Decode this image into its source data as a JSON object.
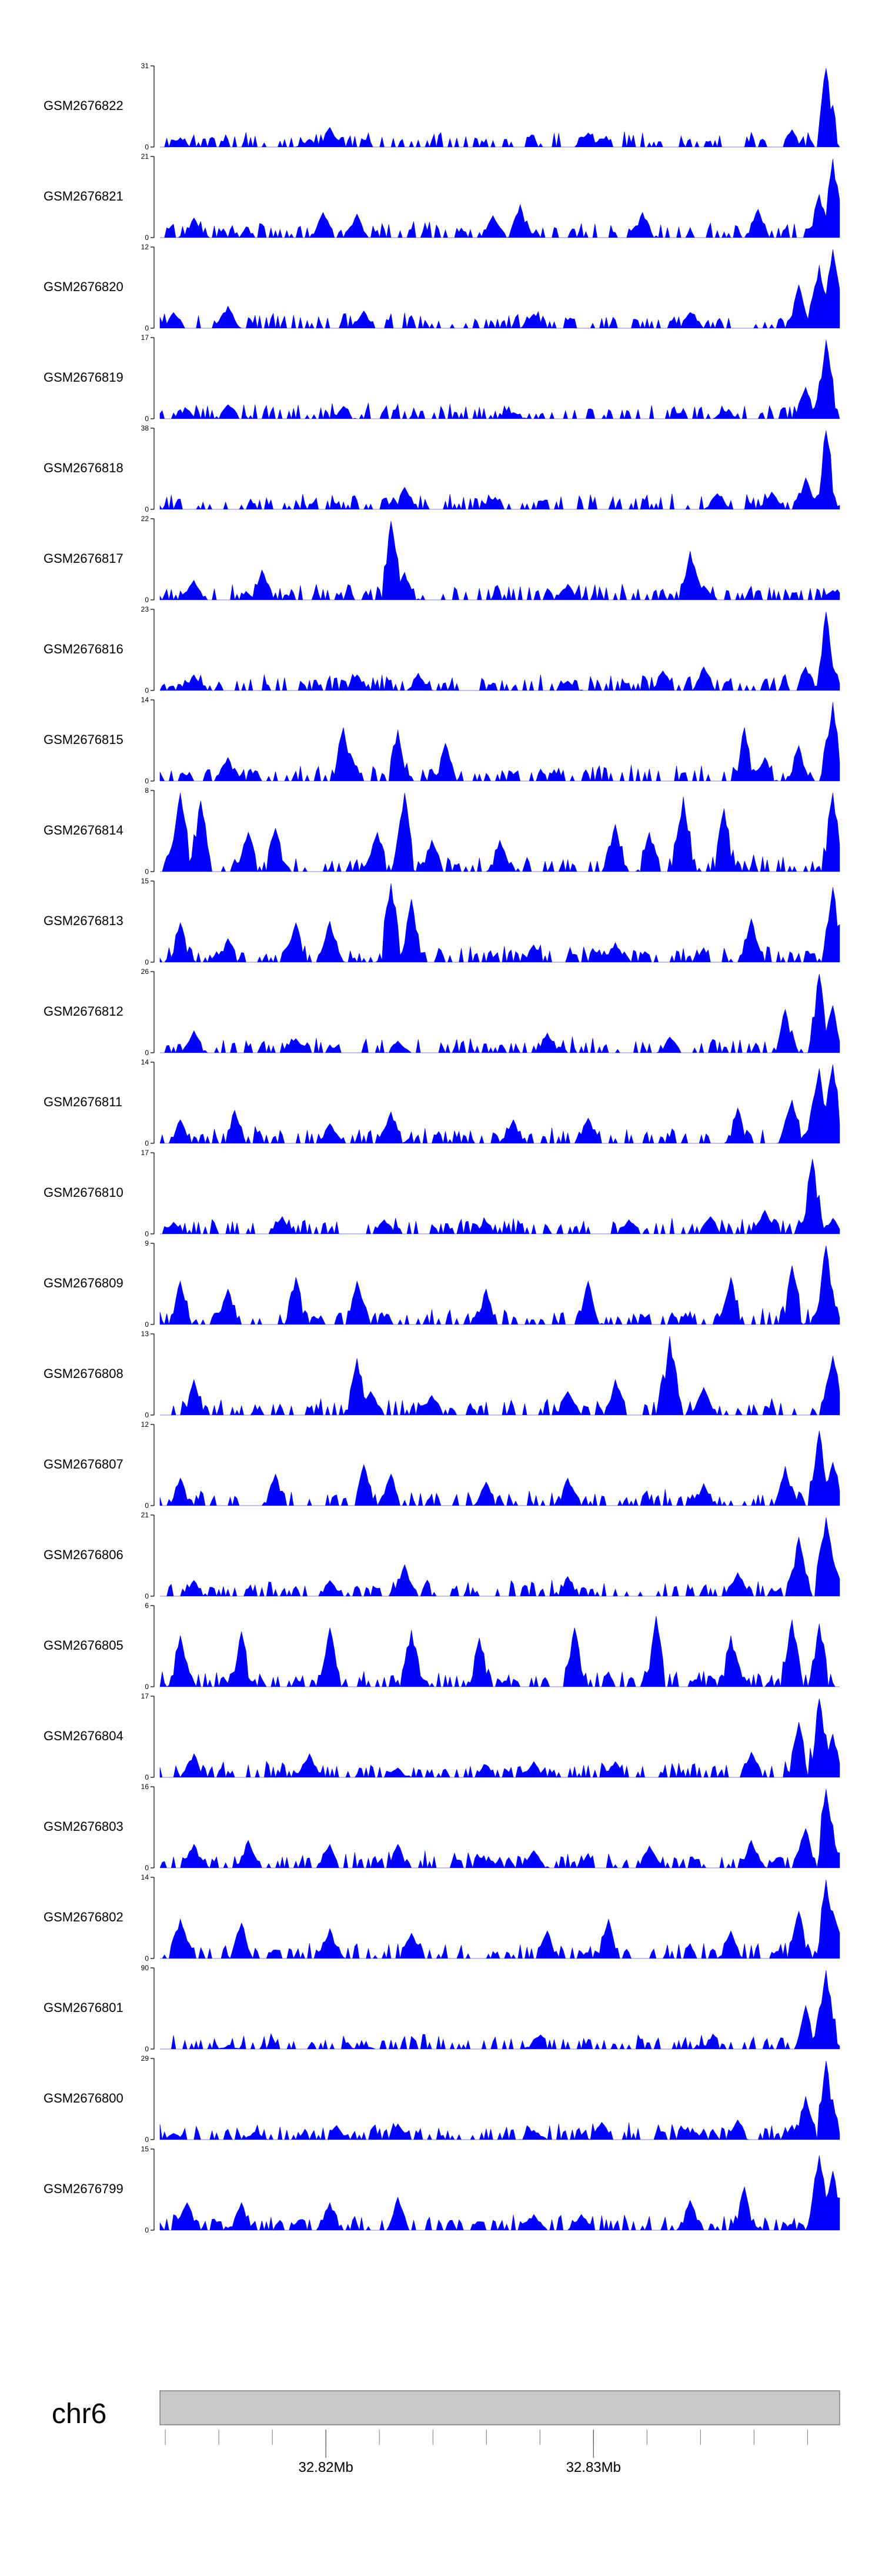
{
  "chart_data": {
    "type": "area",
    "title": "",
    "chromosome": "chr6",
    "x_axis": {
      "range_mb": [
        32.8138,
        32.8392
      ],
      "labeled_ticks": [
        {
          "value": 32.82,
          "label": "32.82Mb"
        },
        {
          "value": 32.83,
          "label": "32.83Mb"
        }
      ],
      "minor_tick_step_mb": 0.002
    },
    "fill_color": "#0000ff",
    "ideogram_color": "#c8c8c8",
    "tracks": [
      {
        "name": "GSM2676822",
        "ymax": 31,
        "ymin": 0,
        "peaks": [
          [
            0.03,
            0.12
          ],
          [
            0.22,
            0.1
          ],
          [
            0.25,
            0.25
          ],
          [
            0.63,
            0.18
          ],
          [
            0.93,
            0.22
          ],
          [
            0.98,
            1.0
          ]
        ]
      },
      {
        "name": "GSM2676821",
        "ymax": 21,
        "ymin": 0,
        "peaks": [
          [
            0.05,
            0.25
          ],
          [
            0.24,
            0.32
          ],
          [
            0.29,
            0.3
          ],
          [
            0.49,
            0.28
          ],
          [
            0.53,
            0.42
          ],
          [
            0.71,
            0.32
          ],
          [
            0.88,
            0.36
          ],
          [
            0.97,
            0.55
          ],
          [
            0.99,
            1.0
          ]
        ]
      },
      {
        "name": "GSM2676820",
        "ymax": 12,
        "ymin": 0,
        "peaks": [
          [
            0.02,
            0.2
          ],
          [
            0.1,
            0.28
          ],
          [
            0.3,
            0.22
          ],
          [
            0.55,
            0.18
          ],
          [
            0.78,
            0.2
          ],
          [
            0.94,
            0.55
          ],
          [
            0.97,
            0.8
          ],
          [
            0.99,
            1.0
          ]
        ]
      },
      {
        "name": "GSM2676819",
        "ymax": 17,
        "ymin": 0,
        "peaks": [
          [
            0.04,
            0.12
          ],
          [
            0.1,
            0.18
          ],
          [
            0.27,
            0.16
          ],
          [
            0.52,
            0.08
          ],
          [
            0.83,
            0.1
          ],
          [
            0.95,
            0.4
          ],
          [
            0.98,
            1.0
          ]
        ]
      },
      {
        "name": "GSM2676818",
        "ymax": 38,
        "ymin": 0,
        "peaks": [
          [
            0.36,
            0.28
          ],
          [
            0.49,
            0.12
          ],
          [
            0.82,
            0.2
          ],
          [
            0.9,
            0.22
          ],
          [
            0.95,
            0.4
          ],
          [
            0.98,
            1.0
          ]
        ]
      },
      {
        "name": "GSM2676817",
        "ymax": 22,
        "ymin": 0,
        "peaks": [
          [
            0.05,
            0.25
          ],
          [
            0.15,
            0.38
          ],
          [
            0.34,
            1.0
          ],
          [
            0.36,
            0.35
          ],
          [
            0.6,
            0.2
          ],
          [
            0.78,
            0.62
          ],
          [
            0.8,
            0.18
          ],
          [
            0.99,
            0.12
          ]
        ]
      },
      {
        "name": "GSM2676816",
        "ymax": 23,
        "ymin": 0,
        "peaks": [
          [
            0.05,
            0.2
          ],
          [
            0.29,
            0.2
          ],
          [
            0.38,
            0.22
          ],
          [
            0.6,
            0.12
          ],
          [
            0.74,
            0.25
          ],
          [
            0.8,
            0.3
          ],
          [
            0.95,
            0.3
          ],
          [
            0.98,
            1.0
          ],
          [
            0.99,
            0.3
          ]
        ]
      },
      {
        "name": "GSM2676815",
        "ymax": 14,
        "ymin": 0,
        "peaks": [
          [
            0.1,
            0.3
          ],
          [
            0.27,
            0.68
          ],
          [
            0.28,
            0.35
          ],
          [
            0.35,
            0.65
          ],
          [
            0.42,
            0.48
          ],
          [
            0.86,
            0.68
          ],
          [
            0.89,
            0.3
          ],
          [
            0.94,
            0.45
          ],
          [
            0.99,
            1.0
          ]
        ]
      },
      {
        "name": "GSM2676814",
        "ymax": 8,
        "ymin": 0,
        "peaks": [
          [
            0.03,
            1.0
          ],
          [
            0.06,
            0.9
          ],
          [
            0.13,
            0.5
          ],
          [
            0.17,
            0.55
          ],
          [
            0.32,
            0.5
          ],
          [
            0.36,
            1.0
          ],
          [
            0.4,
            0.4
          ],
          [
            0.5,
            0.4
          ],
          [
            0.67,
            0.6
          ],
          [
            0.72,
            0.5
          ],
          [
            0.77,
            0.95
          ],
          [
            0.83,
            0.8
          ],
          [
            0.99,
            1.0
          ]
        ]
      },
      {
        "name": "GSM2676813",
        "ymax": 15,
        "ymin": 0,
        "peaks": [
          [
            0.03,
            0.5
          ],
          [
            0.1,
            0.3
          ],
          [
            0.2,
            0.5
          ],
          [
            0.25,
            0.52
          ],
          [
            0.34,
            1.0
          ],
          [
            0.37,
            0.8
          ],
          [
            0.55,
            0.22
          ],
          [
            0.67,
            0.25
          ],
          [
            0.87,
            0.55
          ],
          [
            0.99,
            0.95
          ]
        ]
      },
      {
        "name": "GSM2676812",
        "ymax": 26,
        "ymin": 0,
        "peaks": [
          [
            0.05,
            0.28
          ],
          [
            0.2,
            0.18
          ],
          [
            0.35,
            0.15
          ],
          [
            0.57,
            0.25
          ],
          [
            0.75,
            0.2
          ],
          [
            0.92,
            0.55
          ],
          [
            0.97,
            1.0
          ],
          [
            0.99,
            0.6
          ]
        ]
      },
      {
        "name": "GSM2676811",
        "ymax": 14,
        "ymin": 0,
        "peaks": [
          [
            0.03,
            0.3
          ],
          [
            0.11,
            0.42
          ],
          [
            0.25,
            0.25
          ],
          [
            0.34,
            0.4
          ],
          [
            0.52,
            0.3
          ],
          [
            0.63,
            0.32
          ],
          [
            0.85,
            0.45
          ],
          [
            0.93,
            0.55
          ],
          [
            0.97,
            0.95
          ],
          [
            0.99,
            1.0
          ]
        ]
      },
      {
        "name": "GSM2676810",
        "ymax": 17,
        "ymin": 0,
        "peaks": [
          [
            0.02,
            0.15
          ],
          [
            0.18,
            0.22
          ],
          [
            0.33,
            0.18
          ],
          [
            0.48,
            0.15
          ],
          [
            0.69,
            0.18
          ],
          [
            0.81,
            0.22
          ],
          [
            0.89,
            0.3
          ],
          [
            0.96,
            0.95
          ],
          [
            0.99,
            0.2
          ]
        ]
      },
      {
        "name": "GSM2676809",
        "ymax": 9,
        "ymin": 0,
        "peaks": [
          [
            0.03,
            0.55
          ],
          [
            0.1,
            0.45
          ],
          [
            0.2,
            0.6
          ],
          [
            0.29,
            0.55
          ],
          [
            0.48,
            0.45
          ],
          [
            0.63,
            0.55
          ],
          [
            0.84,
            0.6
          ],
          [
            0.93,
            0.75
          ],
          [
            0.98,
            1.0
          ]
        ]
      },
      {
        "name": "GSM2676808",
        "ymax": 13,
        "ymin": 0,
        "peaks": [
          [
            0.05,
            0.45
          ],
          [
            0.29,
            0.72
          ],
          [
            0.31,
            0.3
          ],
          [
            0.4,
            0.25
          ],
          [
            0.6,
            0.3
          ],
          [
            0.67,
            0.45
          ],
          [
            0.75,
            1.0
          ],
          [
            0.8,
            0.35
          ],
          [
            0.99,
            0.75
          ]
        ]
      },
      {
        "name": "GSM2676807",
        "ymax": 12,
        "ymin": 0,
        "peaks": [
          [
            0.03,
            0.35
          ],
          [
            0.17,
            0.4
          ],
          [
            0.3,
            0.52
          ],
          [
            0.34,
            0.4
          ],
          [
            0.48,
            0.3
          ],
          [
            0.6,
            0.35
          ],
          [
            0.8,
            0.28
          ],
          [
            0.92,
            0.5
          ],
          [
            0.97,
            0.95
          ],
          [
            0.99,
            0.55
          ]
        ]
      },
      {
        "name": "GSM2676806",
        "ymax": 21,
        "ymin": 0,
        "peaks": [
          [
            0.05,
            0.2
          ],
          [
            0.25,
            0.2
          ],
          [
            0.36,
            0.4
          ],
          [
            0.6,
            0.25
          ],
          [
            0.85,
            0.3
          ],
          [
            0.94,
            0.75
          ],
          [
            0.98,
            1.0
          ],
          [
            0.99,
            0.45
          ]
        ]
      },
      {
        "name": "GSM2676805",
        "ymax": 6,
        "ymin": 0,
        "peaks": [
          [
            0.03,
            0.65
          ],
          [
            0.12,
            0.7
          ],
          [
            0.25,
            0.75
          ],
          [
            0.37,
            0.72
          ],
          [
            0.47,
            0.62
          ],
          [
            0.61,
            0.75
          ],
          [
            0.73,
            0.9
          ],
          [
            0.84,
            0.65
          ],
          [
            0.93,
            0.85
          ],
          [
            0.97,
            0.8
          ]
        ]
      },
      {
        "name": "GSM2676804",
        "ymax": 17,
        "ymin": 0,
        "peaks": [
          [
            0.05,
            0.3
          ],
          [
            0.22,
            0.3
          ],
          [
            0.35,
            0.12
          ],
          [
            0.55,
            0.2
          ],
          [
            0.67,
            0.2
          ],
          [
            0.87,
            0.32
          ],
          [
            0.94,
            0.7
          ],
          [
            0.97,
            1.0
          ],
          [
            0.99,
            0.55
          ]
        ]
      },
      {
        "name": "GSM2676803",
        "ymax": 16,
        "ymin": 0,
        "peaks": [
          [
            0.05,
            0.3
          ],
          [
            0.13,
            0.35
          ],
          [
            0.25,
            0.3
          ],
          [
            0.35,
            0.3
          ],
          [
            0.55,
            0.22
          ],
          [
            0.72,
            0.28
          ],
          [
            0.87,
            0.35
          ],
          [
            0.95,
            0.5
          ],
          [
            0.98,
            1.0
          ],
          [
            0.99,
            0.35
          ]
        ]
      },
      {
        "name": "GSM2676802",
        "ymax": 14,
        "ymin": 0,
        "peaks": [
          [
            0.03,
            0.5
          ],
          [
            0.12,
            0.45
          ],
          [
            0.25,
            0.38
          ],
          [
            0.37,
            0.32
          ],
          [
            0.57,
            0.35
          ],
          [
            0.66,
            0.5
          ],
          [
            0.84,
            0.35
          ],
          [
            0.94,
            0.6
          ],
          [
            0.98,
            1.0
          ],
          [
            0.99,
            0.6
          ]
        ]
      },
      {
        "name": "GSM2676801",
        "ymax": 90,
        "ymin": 0,
        "peaks": [
          [
            0.1,
            0.03
          ],
          [
            0.3,
            0.04
          ],
          [
            0.55,
            0.05
          ],
          [
            0.8,
            0.05
          ],
          [
            0.95,
            0.55
          ],
          [
            0.98,
            1.0
          ],
          [
            0.99,
            0.1
          ]
        ]
      },
      {
        "name": "GSM2676800",
        "ymax": 29,
        "ymin": 0,
        "peaks": [
          [
            0.02,
            0.08
          ],
          [
            0.14,
            0.1
          ],
          [
            0.26,
            0.18
          ],
          [
            0.35,
            0.2
          ],
          [
            0.55,
            0.12
          ],
          [
            0.65,
            0.22
          ],
          [
            0.85,
            0.25
          ],
          [
            0.95,
            0.55
          ],
          [
            0.98,
            1.0
          ],
          [
            0.99,
            0.4
          ]
        ]
      },
      {
        "name": "GSM2676799",
        "ymax": 15,
        "ymin": 0,
        "peaks": [
          [
            0.04,
            0.35
          ],
          [
            0.12,
            0.35
          ],
          [
            0.25,
            0.35
          ],
          [
            0.35,
            0.42
          ],
          [
            0.55,
            0.2
          ],
          [
            0.62,
            0.2
          ],
          [
            0.78,
            0.38
          ],
          [
            0.86,
            0.55
          ],
          [
            0.97,
            0.95
          ],
          [
            0.99,
            0.75
          ]
        ]
      }
    ]
  }
}
